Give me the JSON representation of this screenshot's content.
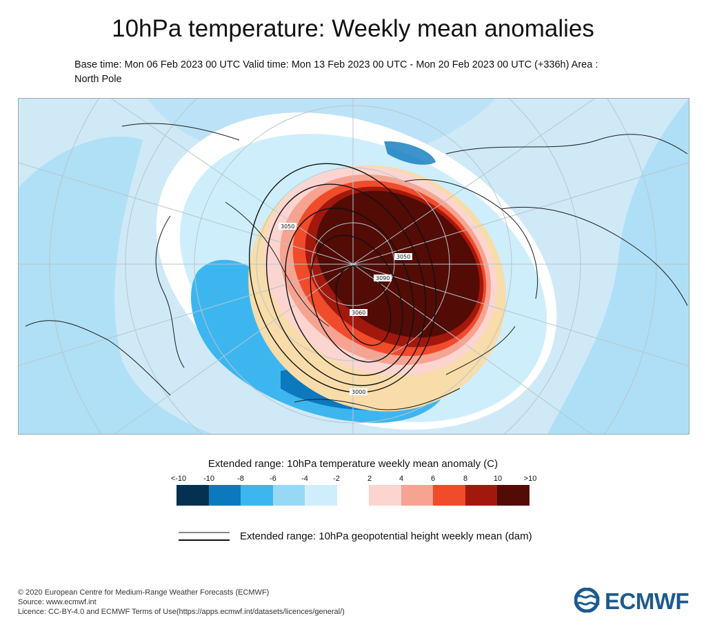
{
  "header": {
    "title": "10hPa temperature: Weekly mean anomalies",
    "subtitle_line1": "Base time: Mon 06 Feb 2023 00 UTC Valid time: Mon 13 Feb 2023 00 UTC - Mon 20 Feb 2023 00 UTC (+336h) Area :",
    "subtitle_line2": "North Pole"
  },
  "map": {
    "projection": "polar stereographic (North Pole)",
    "contour_labels": [
      "3050",
      "3090",
      "3050",
      "3060",
      "3000"
    ],
    "colors": {
      "ocean_background": "#cfe9f7",
      "neg_2_4": "#cfeefb",
      "neg_4_6": "#97d8f5",
      "neg_6_8": "#3db6f0",
      "neg_8_10": "#0c78be",
      "neg_lt_10": "#05304f",
      "pos_2_4": "#fcd5d0",
      "pos_4_6": "#f7a391",
      "pos_6_8": "#f04b2b",
      "pos_8_10": "#a3180c",
      "pos_gt_10": "#520b05",
      "near_zero_warm": "#f8dcaa"
    }
  },
  "legend": {
    "title": "Extended range: 10hPa temperature weekly mean anomaly (C)",
    "ticks": [
      "<-10",
      "-10",
      "-8",
      "-6",
      "-4",
      "-2",
      "2",
      "4",
      "6",
      "8",
      "10",
      ">10"
    ],
    "swatch_colors": [
      "#05304f",
      "#0c78be",
      "#3db6f0",
      "#97d8f5",
      "#cfeefb",
      "#ffffff",
      "#fcd5d0",
      "#f7a391",
      "#f04b2b",
      "#a3180c",
      "#520b05"
    ],
    "contour_label": "Extended range: 10hPa geopotential height weekly mean (dam)"
  },
  "footer": {
    "line1": "© 2020 European Centre for Medium-Range Weather Forecasts (ECMWF)",
    "line2": "Source: www.ecmwf.int",
    "line3": "Licence: CC-BY-4.0 and ECMWF Terms of Use(https://apps.ecmwf.int/datasets/licences/general/)"
  },
  "logo": {
    "text": "ECMWF"
  }
}
